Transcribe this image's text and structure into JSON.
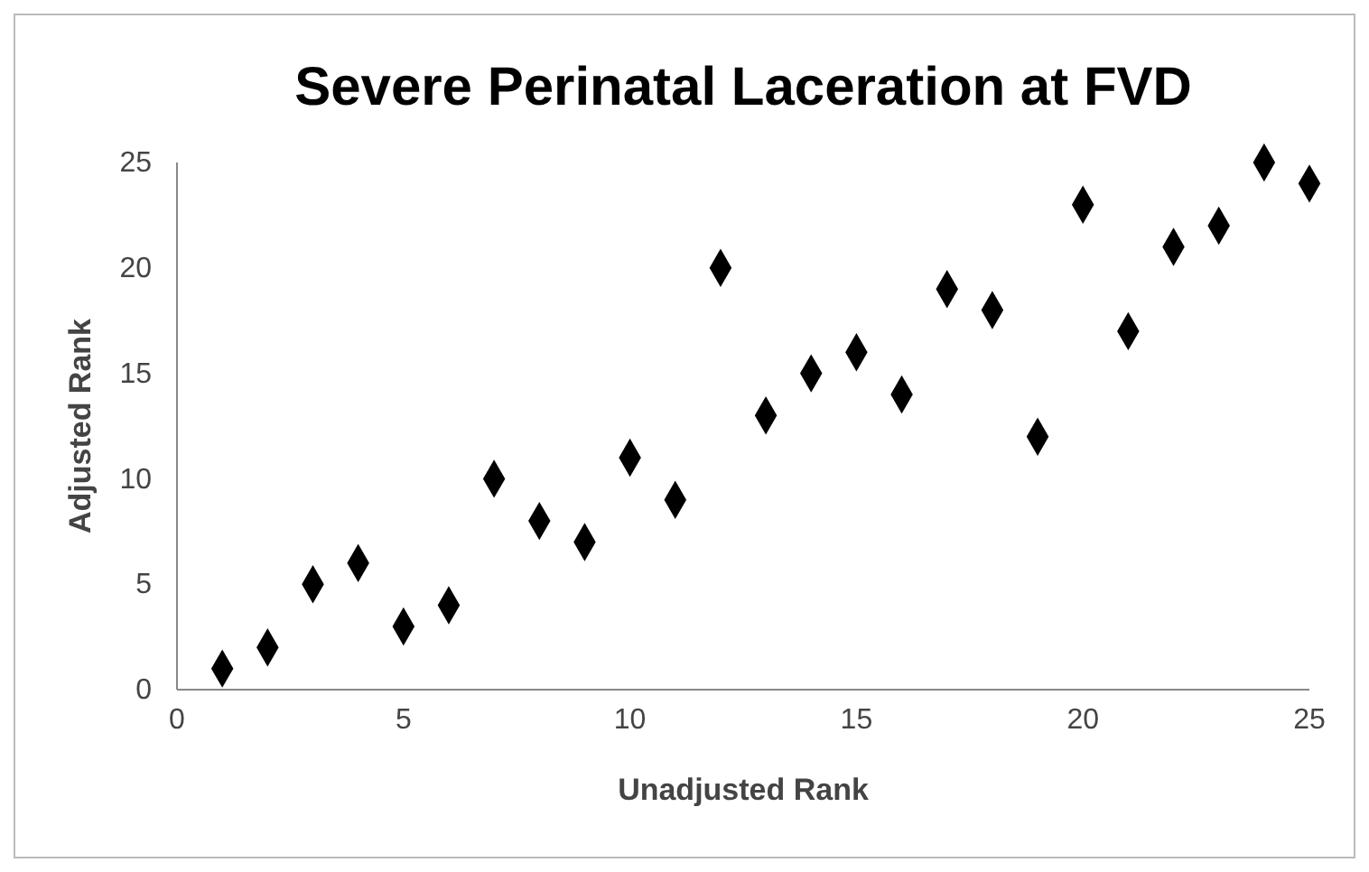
{
  "chart_data": {
    "type": "scatter",
    "title": "Severe Perinatal Laceration at FVD",
    "xlabel": "Unadjusted Rank",
    "ylabel": "Adjusted Rank",
    "x": [
      1,
      2,
      3,
      4,
      5,
      6,
      7,
      8,
      9,
      10,
      11,
      12,
      13,
      14,
      15,
      16,
      17,
      18,
      19,
      20,
      21,
      22,
      23,
      24,
      25
    ],
    "series": [
      {
        "color": "#000000",
        "values": [
          1,
          2,
          5,
          6,
          3,
          4,
          10,
          8,
          7,
          11,
          9,
          20,
          13,
          15,
          16,
          14,
          19,
          18,
          12,
          23,
          17,
          21,
          22,
          25,
          24
        ]
      }
    ],
    "xlim": [
      0,
      25
    ],
    "xticks": [
      0,
      5,
      10,
      15,
      20,
      25
    ],
    "ylim": [
      0,
      25
    ],
    "yticks": [
      0,
      5,
      10,
      15,
      20,
      25
    ],
    "marker": "diamond"
  }
}
